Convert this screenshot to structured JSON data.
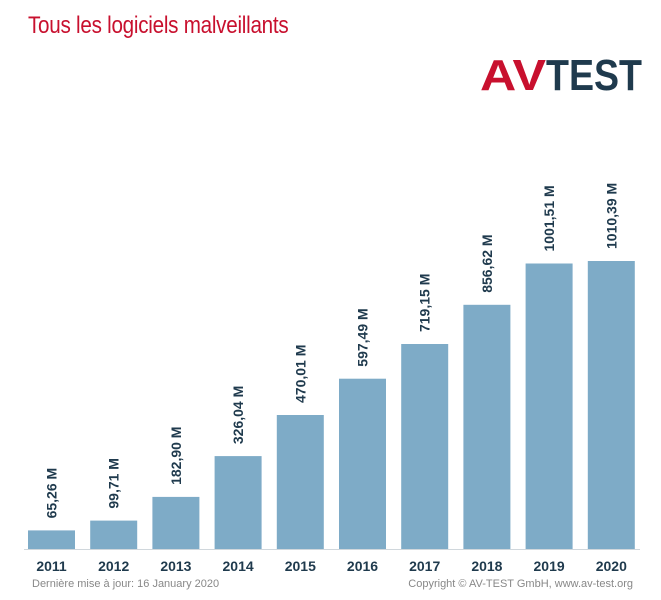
{
  "chart_data": {
    "type": "bar",
    "title": "Tous les logiciels malveillants",
    "categories": [
      "2011",
      "2012",
      "2013",
      "2014",
      "2015",
      "2016",
      "2017",
      "2018",
      "2019",
      "2020"
    ],
    "values": [
      65.26,
      99.71,
      182.9,
      326.04,
      470.01,
      597.49,
      719.15,
      856.62,
      1001.51,
      1010.39
    ],
    "data_labels": [
      "65,26 M",
      "99,71 M",
      "182,90 M",
      "326,04 M",
      "470,01 M",
      "597,49 M",
      "719,15 M",
      "856,62 M",
      "1001,51 M",
      "1010,39 M"
    ],
    "xlabel": "",
    "ylabel": "",
    "ylim": [
      0,
      1010.39
    ],
    "grid": false,
    "legend": "none",
    "bar_color": "#7eabc7",
    "label_color": "#1f3a4d"
  },
  "logo": {
    "text_left": "AV",
    "text_right": "TEST",
    "red": "#c8102e",
    "dark": "#1f3a4d"
  },
  "footer": {
    "last_update": "Dernière mise à jour: 16 January 2020",
    "copyright": "Copyright © AV-TEST GmbH, www.av-test.org"
  }
}
